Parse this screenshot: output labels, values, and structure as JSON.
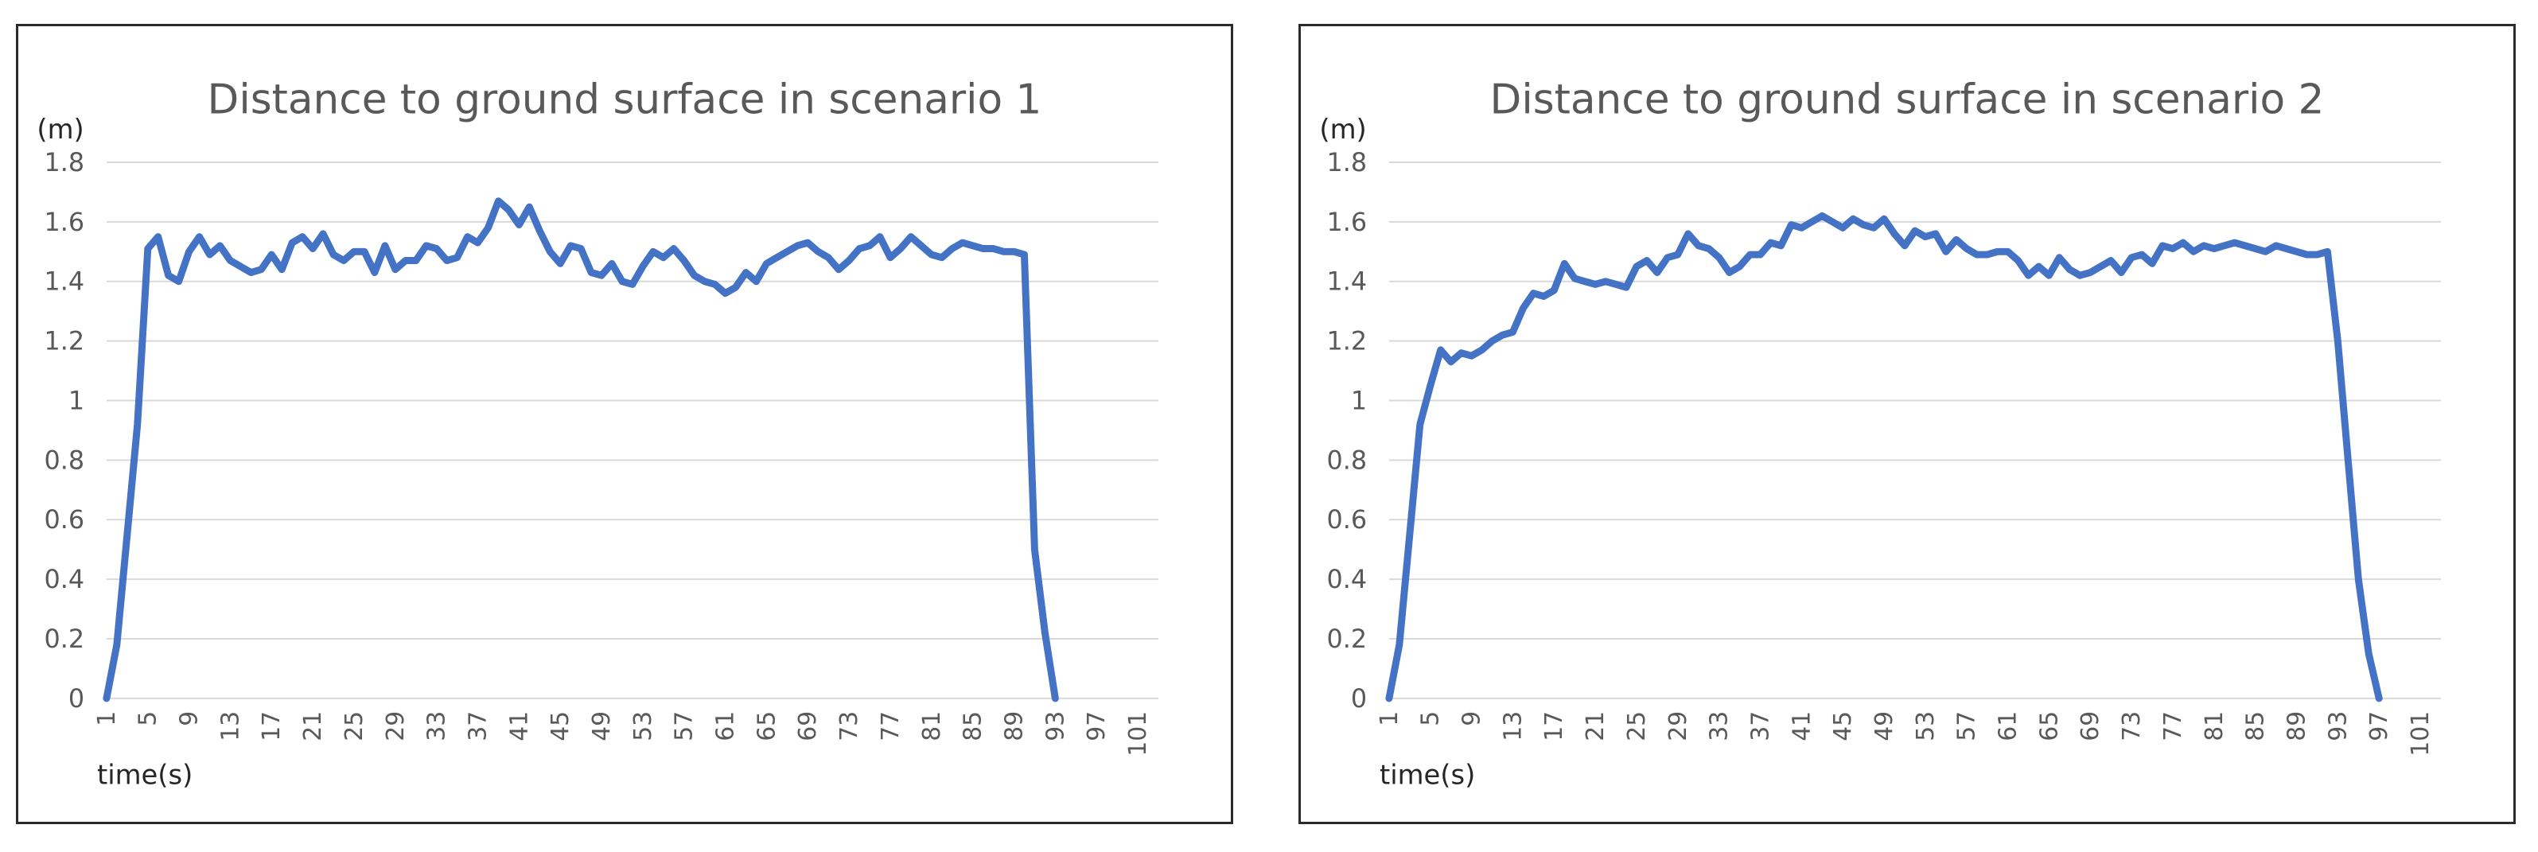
{
  "colors": {
    "line": "#4472c4",
    "grid": "#d9d9d9",
    "text": "#595959",
    "border": "#2b2b2b"
  },
  "chart_data": [
    {
      "type": "line",
      "title": "Distance to ground surface in scenario 1",
      "ylabel": "(m)",
      "xlabel": "time(s)",
      "ylim": [
        0,
        1.8
      ],
      "yticks": [
        "0",
        "0.2",
        "0.4",
        "0.6",
        "0.8",
        "1",
        "1.2",
        "1.4",
        "1.6",
        "1.8"
      ],
      "xlim": [
        1,
        103
      ],
      "xticks": [
        "1",
        "5",
        "9",
        "13",
        "17",
        "21",
        "25",
        "29",
        "33",
        "37",
        "41",
        "45",
        "49",
        "53",
        "57",
        "61",
        "65",
        "69",
        "73",
        "77",
        "81",
        "85",
        "89",
        "93",
        "97",
        "101"
      ],
      "grid": true,
      "legend": "none",
      "series": [
        {
          "x": [
            1,
            2,
            3,
            4,
            5,
            6,
            7,
            8,
            9,
            10,
            11,
            12,
            13,
            14,
            15,
            16,
            17,
            18,
            19,
            20,
            21,
            22,
            23,
            24,
            25,
            26,
            27,
            28,
            29,
            30,
            31,
            32,
            33,
            34,
            35,
            36,
            37,
            38,
            39,
            40,
            41,
            42,
            43,
            44,
            45,
            46,
            47,
            48,
            49,
            50,
            51,
            52,
            53,
            54,
            55,
            56,
            57,
            58,
            59,
            60,
            61,
            62,
            63,
            64,
            65,
            66,
            67,
            68,
            69,
            70,
            71,
            72,
            73,
            74,
            75,
            76,
            77,
            78,
            79,
            80,
            81,
            82,
            83,
            84,
            85,
            86,
            87,
            88,
            89,
            90,
            91,
            92,
            93
          ],
          "y": [
            0,
            0.18,
            0.55,
            0.92,
            1.51,
            1.55,
            1.42,
            1.4,
            1.5,
            1.55,
            1.49,
            1.52,
            1.47,
            1.45,
            1.43,
            1.44,
            1.49,
            1.44,
            1.53,
            1.55,
            1.51,
            1.56,
            1.49,
            1.47,
            1.5,
            1.5,
            1.43,
            1.52,
            1.44,
            1.47,
            1.47,
            1.52,
            1.51,
            1.47,
            1.48,
            1.55,
            1.53,
            1.58,
            1.67,
            1.64,
            1.59,
            1.65,
            1.57,
            1.5,
            1.46,
            1.52,
            1.51,
            1.43,
            1.42,
            1.46,
            1.4,
            1.39,
            1.45,
            1.5,
            1.48,
            1.51,
            1.47,
            1.42,
            1.4,
            1.39,
            1.36,
            1.38,
            1.43,
            1.4,
            1.46,
            1.48,
            1.5,
            1.52,
            1.53,
            1.5,
            1.48,
            1.44,
            1.47,
            1.51,
            1.52,
            1.55,
            1.48,
            1.51,
            1.55,
            1.52,
            1.49,
            1.48,
            1.51,
            1.53,
            1.52,
            1.51,
            1.51,
            1.5,
            1.5,
            1.49,
            0.5,
            0.22,
            0
          ]
        }
      ]
    },
    {
      "type": "line",
      "title": "Distance to ground surface in scenario 2",
      "ylabel": "(m)",
      "xlabel": "time(s)",
      "ylim": [
        0,
        1.8
      ],
      "yticks": [
        "0",
        "0.2",
        "0.4",
        "0.6",
        "0.8",
        "1",
        "1.2",
        "1.4",
        "1.6",
        "1.8"
      ],
      "xlim": [
        1,
        103
      ],
      "xticks": [
        "1",
        "5",
        "9",
        "13",
        "17",
        "21",
        "25",
        "29",
        "33",
        "37",
        "41",
        "45",
        "49",
        "53",
        "57",
        "61",
        "65",
        "69",
        "73",
        "77",
        "81",
        "85",
        "89",
        "93",
        "97",
        "101"
      ],
      "grid": true,
      "legend": "none",
      "series": [
        {
          "x": [
            1,
            2,
            3,
            4,
            5,
            6,
            7,
            8,
            9,
            10,
            11,
            12,
            13,
            14,
            15,
            16,
            17,
            18,
            19,
            20,
            21,
            22,
            23,
            24,
            25,
            26,
            27,
            28,
            29,
            30,
            31,
            32,
            33,
            34,
            35,
            36,
            37,
            38,
            39,
            40,
            41,
            42,
            43,
            44,
            45,
            46,
            47,
            48,
            49,
            50,
            51,
            52,
            53,
            54,
            55,
            56,
            57,
            58,
            59,
            60,
            61,
            62,
            63,
            64,
            65,
            66,
            67,
            68,
            69,
            70,
            71,
            72,
            73,
            74,
            75,
            76,
            77,
            78,
            79,
            80,
            81,
            82,
            83,
            84,
            85,
            86,
            87,
            88,
            89,
            90,
            91,
            92,
            93,
            94,
            95,
            96,
            97
          ],
          "y": [
            0,
            0.18,
            0.55,
            0.92,
            1.05,
            1.17,
            1.13,
            1.16,
            1.15,
            1.17,
            1.2,
            1.22,
            1.23,
            1.31,
            1.36,
            1.35,
            1.37,
            1.46,
            1.41,
            1.4,
            1.39,
            1.4,
            1.39,
            1.38,
            1.45,
            1.47,
            1.43,
            1.48,
            1.49,
            1.56,
            1.52,
            1.51,
            1.48,
            1.43,
            1.45,
            1.49,
            1.49,
            1.53,
            1.52,
            1.59,
            1.58,
            1.6,
            1.62,
            1.6,
            1.58,
            1.61,
            1.59,
            1.58,
            1.61,
            1.56,
            1.52,
            1.57,
            1.55,
            1.56,
            1.5,
            1.54,
            1.51,
            1.49,
            1.49,
            1.5,
            1.5,
            1.47,
            1.42,
            1.45,
            1.42,
            1.48,
            1.44,
            1.42,
            1.43,
            1.45,
            1.47,
            1.43,
            1.48,
            1.49,
            1.46,
            1.52,
            1.51,
            1.53,
            1.5,
            1.52,
            1.51,
            1.52,
            1.53,
            1.52,
            1.51,
            1.5,
            1.52,
            1.51,
            1.5,
            1.49,
            1.49,
            1.5,
            1.2,
            0.8,
            0.4,
            0.15,
            0
          ]
        }
      ]
    }
  ]
}
